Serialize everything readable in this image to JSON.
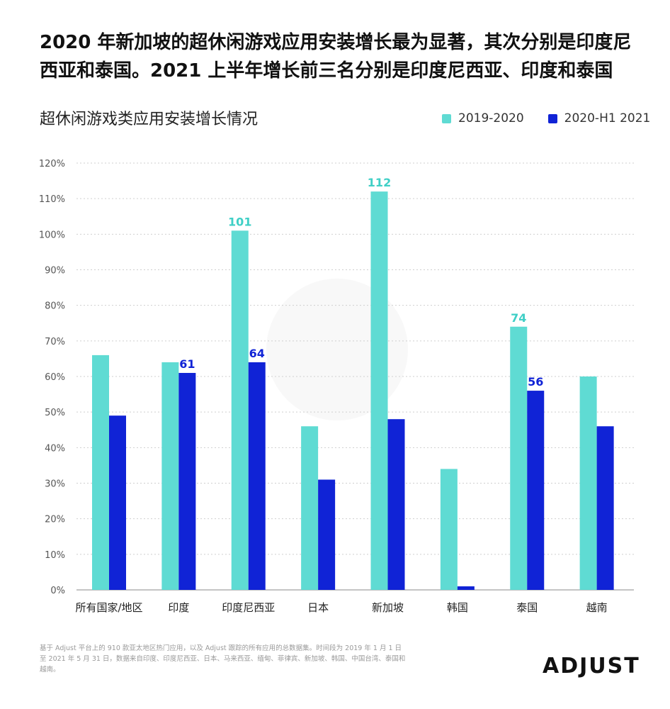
{
  "headline": "2020 年新加坡的超休闲游戏应用安装增长最为显著，其次分别是印度尼西亚和泰国。2021 上半年增长前三名分别是印度尼西亚、印度和泰国",
  "footnote": "基于 Adjust 平台上的 910 款亚太地区热门应用，以及 Adjust 跟踪的所有应用的总数据集。时间段为 2019 年 1 月 1 日至 2021 年 5 月 31 日，数据来自印度、印度尼西亚、日本、马来西亚、缅甸、菲律宾、新加坡、韩国、中国台湾、泰国和越南。",
  "logo": "ADJUST",
  "chart_data": {
    "type": "bar",
    "title": "超休闲游戏类应用安装增长情况",
    "categories": [
      "所有国家/地区",
      "印度",
      "印度尼西亚",
      "日本",
      "新加坡",
      "韩国",
      "泰国",
      "越南"
    ],
    "series": [
      {
        "name": "2019-2020",
        "color": "#5fdbd3",
        "values": [
          66,
          64,
          101,
          46,
          112,
          34,
          74,
          60
        ]
      },
      {
        "name": "2020-H1 2021",
        "color": "#1023d6",
        "values": [
          49,
          61,
          64,
          31,
          48,
          1,
          56,
          46
        ]
      }
    ],
    "data_labels": [
      {
        "series": 1,
        "index": 1,
        "text": "61"
      },
      {
        "series": 0,
        "index": 2,
        "text": "101"
      },
      {
        "series": 1,
        "index": 2,
        "text": "64"
      },
      {
        "series": 0,
        "index": 4,
        "text": "112"
      },
      {
        "series": 0,
        "index": 6,
        "text": "74"
      },
      {
        "series": 1,
        "index": 6,
        "text": "56"
      }
    ],
    "yticks": [
      "0%",
      "10%",
      "20%",
      "30%",
      "40%",
      "50%",
      "60%",
      "70%",
      "80%",
      "90%",
      "100%",
      "110%",
      "120%"
    ],
    "ylim": [
      0,
      120
    ],
    "grid": true,
    "legend": "top-right"
  }
}
